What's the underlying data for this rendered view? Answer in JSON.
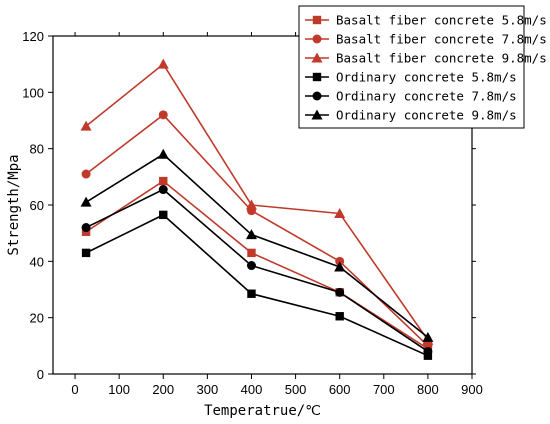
{
  "chart_data": {
    "type": "line",
    "title": "",
    "xlabel": "Temperatrue/℃",
    "ylabel": "Strength/Mpa",
    "xlim": [
      -50,
      900
    ],
    "ylim": [
      0,
      120
    ],
    "xticks": [
      0,
      100,
      200,
      300,
      400,
      500,
      600,
      700,
      800,
      900
    ],
    "yticks": [
      0,
      20,
      40,
      60,
      80,
      100,
      120
    ],
    "grid": false,
    "legend_position": "top-right",
    "x": [
      25,
      200,
      400,
      600,
      800
    ],
    "series": [
      {
        "name": "Basalt fiber concrete 5.8m/s",
        "marker": "square",
        "color": "#c0392b",
        "values": [
          50.5,
          68.5,
          43,
          29,
          9
        ]
      },
      {
        "name": "Basalt fiber concrete 7.8m/s",
        "marker": "circle",
        "color": "#c0392b",
        "values": [
          71,
          92,
          58,
          40,
          10
        ]
      },
      {
        "name": "Basalt fiber concrete 9.8m/s",
        "marker": "triangle",
        "color": "#c0392b",
        "values": [
          88,
          110,
          60,
          57,
          12
        ]
      },
      {
        "name": "Ordinary concrete 5.8m/s",
        "marker": "square",
        "color": "#000000",
        "values": [
          43,
          56.5,
          28.5,
          20.5,
          6.5
        ]
      },
      {
        "name": "Ordinary concrete 7.8m/s",
        "marker": "circle",
        "color": "#000000",
        "values": [
          52,
          65.5,
          38.5,
          29,
          8
        ]
      },
      {
        "name": "Ordinary concrete 9.8m/s",
        "marker": "triangle",
        "color": "#000000",
        "values": [
          61,
          78,
          49.5,
          38,
          13
        ]
      }
    ]
  }
}
